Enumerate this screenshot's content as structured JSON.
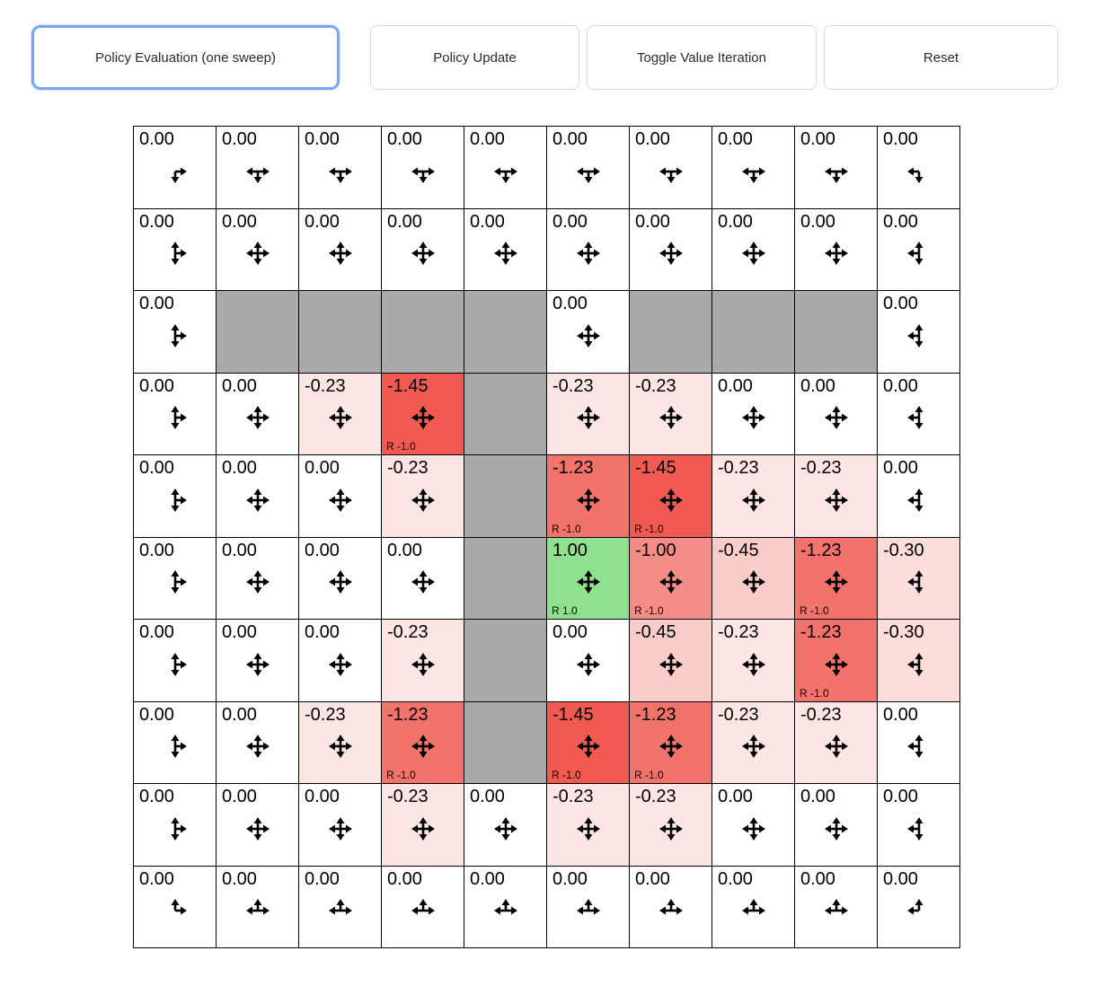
{
  "toolbar": {
    "buttons": [
      {
        "label": "Policy Evaluation (one sweep)",
        "focused": true
      },
      {
        "label": "Policy Update",
        "focused": false
      },
      {
        "label": "Toggle Value Iteration",
        "focused": false
      },
      {
        "label": "Reset",
        "focused": false
      }
    ]
  },
  "palette": {
    "positive": "#33c733",
    "negative": "#ec3024",
    "wall": "#a9a9a9",
    "focus_border": "#7aa5f5",
    "grid_line": "#000000"
  },
  "grid": {
    "rows": [
      [
        {
          "v": "0.00",
          "d": "dr"
        },
        {
          "v": "0.00",
          "d": "ldr"
        },
        {
          "v": "0.00",
          "d": "ldr"
        },
        {
          "v": "0.00",
          "d": "ldr"
        },
        {
          "v": "0.00",
          "d": "ldr"
        },
        {
          "v": "0.00",
          "d": "ldr"
        },
        {
          "v": "0.00",
          "d": "ldr"
        },
        {
          "v": "0.00",
          "d": "ldr"
        },
        {
          "v": "0.00",
          "d": "ldr"
        },
        {
          "v": "0.00",
          "d": "ld"
        }
      ],
      [
        {
          "v": "0.00",
          "d": "udr"
        },
        {
          "v": "0.00",
          "d": "udlr"
        },
        {
          "v": "0.00",
          "d": "udlr"
        },
        {
          "v": "0.00",
          "d": "udlr"
        },
        {
          "v": "0.00",
          "d": "udlr"
        },
        {
          "v": "0.00",
          "d": "udlr"
        },
        {
          "v": "0.00",
          "d": "udlr"
        },
        {
          "v": "0.00",
          "d": "udlr"
        },
        {
          "v": "0.00",
          "d": "udlr"
        },
        {
          "v": "0.00",
          "d": "udl"
        }
      ],
      [
        {
          "v": "0.00",
          "d": "udr"
        },
        {
          "wall": true
        },
        {
          "wall": true
        },
        {
          "wall": true
        },
        {
          "wall": true
        },
        {
          "v": "0.00",
          "d": "udlr"
        },
        {
          "wall": true
        },
        {
          "wall": true
        },
        {
          "wall": true
        },
        {
          "v": "0.00",
          "d": "udl"
        }
      ],
      [
        {
          "v": "0.00",
          "d": "udr"
        },
        {
          "v": "0.00",
          "d": "udlr"
        },
        {
          "v": "-0.23",
          "d": "udlr"
        },
        {
          "v": "-1.45",
          "d": "udlr",
          "r": "R -1.0"
        },
        {
          "wall": true
        },
        {
          "v": "-0.23",
          "d": "udlr"
        },
        {
          "v": "-0.23",
          "d": "udlr"
        },
        {
          "v": "0.00",
          "d": "udlr"
        },
        {
          "v": "0.00",
          "d": "udlr"
        },
        {
          "v": "0.00",
          "d": "udl"
        }
      ],
      [
        {
          "v": "0.00",
          "d": "udr"
        },
        {
          "v": "0.00",
          "d": "udlr"
        },
        {
          "v": "0.00",
          "d": "udlr"
        },
        {
          "v": "-0.23",
          "d": "udlr"
        },
        {
          "wall": true
        },
        {
          "v": "-1.23",
          "d": "udlr",
          "r": "R -1.0"
        },
        {
          "v": "-1.45",
          "d": "udlr",
          "r": "R -1.0"
        },
        {
          "v": "-0.23",
          "d": "udlr"
        },
        {
          "v": "-0.23",
          "d": "udlr"
        },
        {
          "v": "0.00",
          "d": "udl"
        }
      ],
      [
        {
          "v": "0.00",
          "d": "udr"
        },
        {
          "v": "0.00",
          "d": "udlr"
        },
        {
          "v": "0.00",
          "d": "udlr"
        },
        {
          "v": "0.00",
          "d": "udlr"
        },
        {
          "wall": true
        },
        {
          "v": "1.00",
          "d": "udlr",
          "r": "R 1.0"
        },
        {
          "v": "-1.00",
          "d": "udlr",
          "r": "R -1.0"
        },
        {
          "v": "-0.45",
          "d": "udlr"
        },
        {
          "v": "-1.23",
          "d": "udlr",
          "r": "R -1.0"
        },
        {
          "v": "-0.30",
          "d": "udl"
        }
      ],
      [
        {
          "v": "0.00",
          "d": "udr"
        },
        {
          "v": "0.00",
          "d": "udlr"
        },
        {
          "v": "0.00",
          "d": "udlr"
        },
        {
          "v": "-0.23",
          "d": "udlr"
        },
        {
          "wall": true
        },
        {
          "v": "0.00",
          "d": "udlr"
        },
        {
          "v": "-0.45",
          "d": "udlr"
        },
        {
          "v": "-0.23",
          "d": "udlr"
        },
        {
          "v": "-1.23",
          "d": "udlr",
          "r": "R -1.0"
        },
        {
          "v": "-0.30",
          "d": "udl"
        }
      ],
      [
        {
          "v": "0.00",
          "d": "udr"
        },
        {
          "v": "0.00",
          "d": "udlr"
        },
        {
          "v": "-0.23",
          "d": "udlr"
        },
        {
          "v": "-1.23",
          "d": "udlr",
          "r": "R -1.0"
        },
        {
          "wall": true
        },
        {
          "v": "-1.45",
          "d": "udlr",
          "r": "R -1.0"
        },
        {
          "v": "-1.23",
          "d": "udlr",
          "r": "R -1.0"
        },
        {
          "v": "-0.23",
          "d": "udlr"
        },
        {
          "v": "-0.23",
          "d": "udlr"
        },
        {
          "v": "0.00",
          "d": "udl"
        }
      ],
      [
        {
          "v": "0.00",
          "d": "udr"
        },
        {
          "v": "0.00",
          "d": "udlr"
        },
        {
          "v": "0.00",
          "d": "udlr"
        },
        {
          "v": "-0.23",
          "d": "udlr"
        },
        {
          "v": "0.00",
          "d": "udlr"
        },
        {
          "v": "-0.23",
          "d": "udlr"
        },
        {
          "v": "-0.23",
          "d": "udlr"
        },
        {
          "v": "0.00",
          "d": "udlr"
        },
        {
          "v": "0.00",
          "d": "udlr"
        },
        {
          "v": "0.00",
          "d": "udl"
        }
      ],
      [
        {
          "v": "0.00",
          "d": "ur"
        },
        {
          "v": "0.00",
          "d": "ulr"
        },
        {
          "v": "0.00",
          "d": "ulr"
        },
        {
          "v": "0.00",
          "d": "ulr"
        },
        {
          "v": "0.00",
          "d": "ulr"
        },
        {
          "v": "0.00",
          "d": "ulr"
        },
        {
          "v": "0.00",
          "d": "ulr"
        },
        {
          "v": "0.00",
          "d": "ulr"
        },
        {
          "v": "0.00",
          "d": "ulr"
        },
        {
          "v": "0.00",
          "d": "ul"
        }
      ]
    ]
  }
}
